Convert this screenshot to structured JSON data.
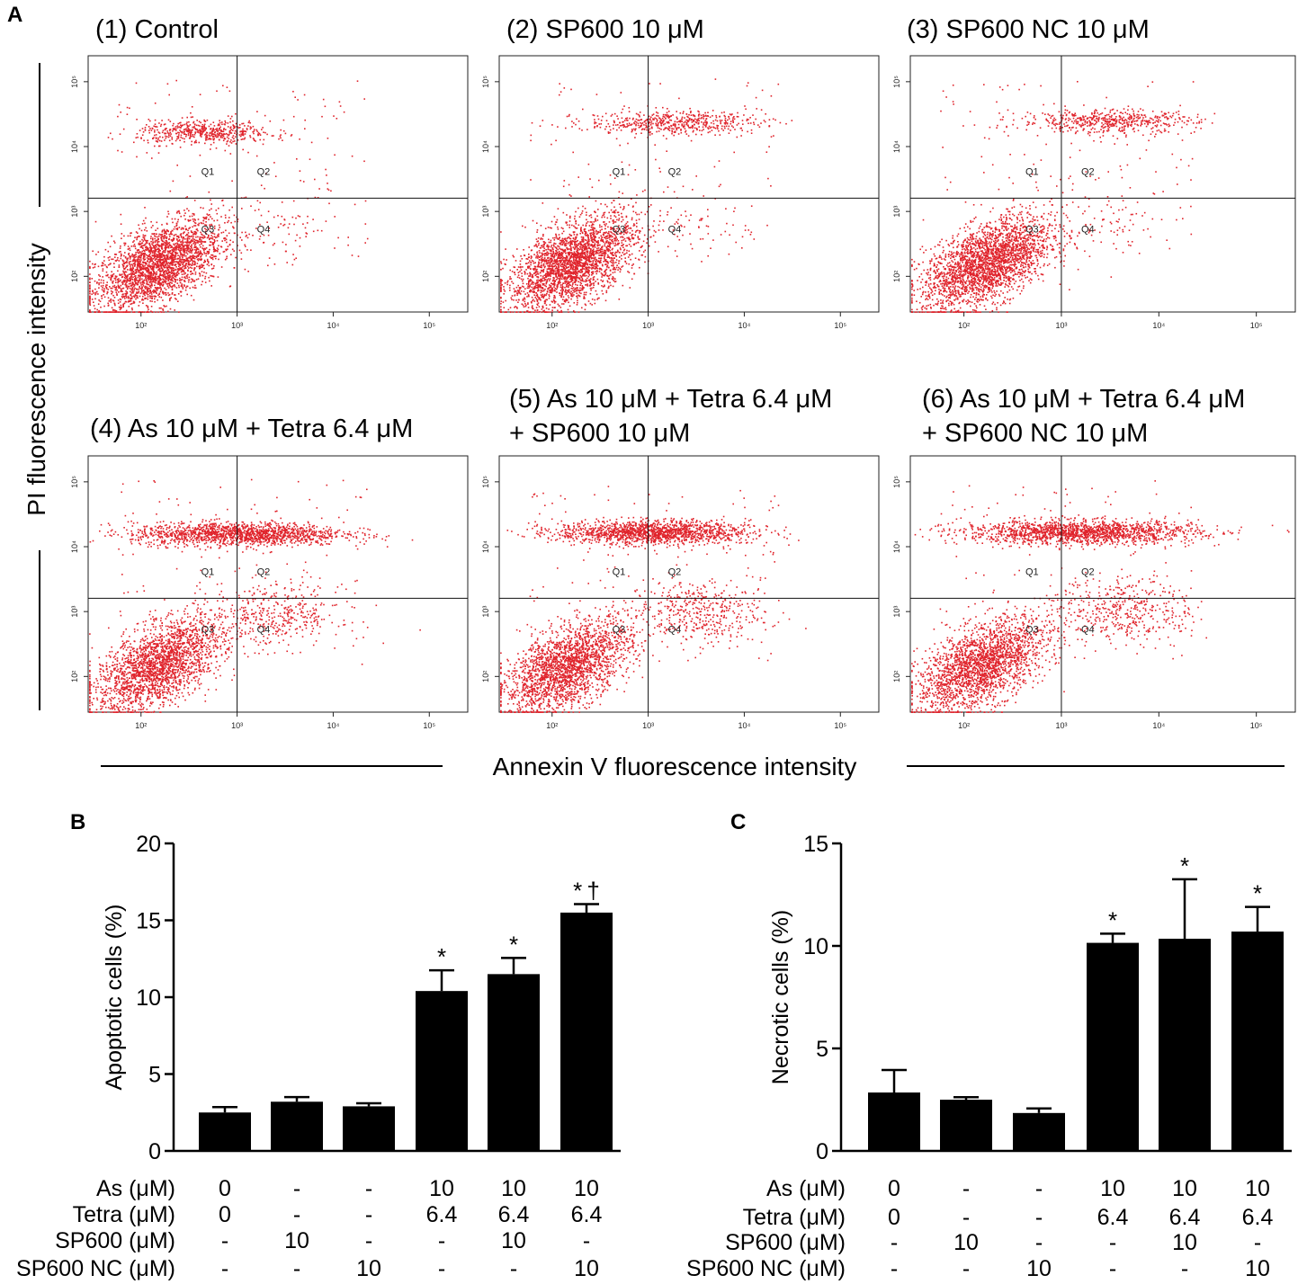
{
  "panel_labels": {
    "a": "A",
    "b": "B",
    "c": "C"
  },
  "flow": {
    "y_axis_label": "PI fluorescence intensity",
    "x_axis_label": "Annexin V fluorescence intensity",
    "x_ticks": [
      "10²",
      "10³",
      "10⁴",
      "10⁵"
    ],
    "y_ticks": [
      "10²",
      "10³",
      "10⁴",
      "10⁵"
    ],
    "quadrants": [
      "Q1",
      "Q2",
      "Q3",
      "Q4"
    ],
    "dot_color": "#e0242c",
    "plots": [
      {
        "title": [
          "(1) Control"
        ],
        "gate_x": 1000,
        "gate_y": 1600,
        "populations": {
          "live_x": 150,
          "live_y": 150,
          "live_n": 2600,
          "top_x": 450,
          "top_spread": 0.35,
          "top_y": 17000,
          "top_n": 520,
          "mid_n": 60,
          "mid_x": 2500,
          "mid_y": 600
        }
      },
      {
        "title": [
          "(2) SP600 10 μM"
        ],
        "gate_x": 1000,
        "gate_y": 1600,
        "populations": {
          "live_x": 160,
          "live_y": 160,
          "live_n": 2600,
          "top_x": 1800,
          "top_spread": 0.45,
          "top_y": 24000,
          "top_n": 520,
          "mid_n": 60,
          "mid_x": 2500,
          "mid_y": 600
        }
      },
      {
        "title": [
          "(3) SP600 NC 10 μM"
        ],
        "gate_x": 1000,
        "gate_y": 1600,
        "populations": {
          "live_x": 170,
          "live_y": 160,
          "live_n": 2600,
          "top_x": 3000,
          "top_spread": 0.45,
          "top_y": 25000,
          "top_n": 520,
          "mid_n": 70,
          "mid_x": 3000,
          "mid_y": 700
        }
      },
      {
        "title": [
          "(4) As 10 μM + Tetra 6.4 μM"
        ],
        "gate_x": 1000,
        "gate_y": 1600,
        "populations": {
          "live_x": 150,
          "live_y": 150,
          "live_n": 2200,
          "top_x": 1000,
          "top_spread": 0.55,
          "top_y": 16000,
          "top_n": 1500,
          "mid_n": 380,
          "mid_x": 2500,
          "mid_y": 900
        }
      },
      {
        "title": [
          "(5) As 10 μM + Tetra 6.4 μM",
          "+ SP600 10 μM"
        ],
        "gate_x": 1000,
        "gate_y": 1600,
        "populations": {
          "live_x": 140,
          "live_y": 140,
          "live_n": 2200,
          "top_x": 1100,
          "top_spread": 0.5,
          "top_y": 17000,
          "top_n": 1500,
          "mid_n": 420,
          "mid_x": 3000,
          "mid_y": 1000
        }
      },
      {
        "title": [
          "(6) As 10 μM + Tetra 6.4 μM",
          "+ SP600 NC 10 μM"
        ],
        "gate_x": 1000,
        "gate_y": 1600,
        "populations": {
          "live_x": 150,
          "live_y": 150,
          "live_n": 2200,
          "top_x": 1500,
          "top_spread": 0.6,
          "top_y": 17000,
          "top_n": 1600,
          "mid_n": 420,
          "mid_x": 4500,
          "mid_y": 1100
        }
      }
    ]
  },
  "chart_data": [
    {
      "type": "bar",
      "panel": "B",
      "ylabel": "Apoptotic cells (%)",
      "ylim": [
        0,
        20
      ],
      "yticks": [
        0,
        5,
        10,
        15,
        20
      ],
      "values": [
        2.5,
        3.2,
        2.9,
        10.4,
        11.5,
        15.5
      ],
      "errors": [
        0.35,
        0.3,
        0.2,
        1.35,
        1.05,
        0.55
      ],
      "annotations": [
        "",
        "",
        "",
        "*",
        "*",
        "* †"
      ],
      "rows": [
        {
          "label": "As (μM)",
          "values": [
            "0",
            "-",
            "-",
            "10",
            "10",
            "10"
          ]
        },
        {
          "label": "Tetra (μM)",
          "values": [
            "0",
            "-",
            "-",
            "6.4",
            "6.4",
            "6.4"
          ]
        },
        {
          "label": "SP600 (μM)",
          "values": [
            "-",
            "10",
            "-",
            "-",
            "10",
            "-"
          ]
        },
        {
          "label": "SP600 NC (μM)",
          "values": [
            "-",
            "-",
            "10",
            "-",
            "-",
            "10"
          ]
        }
      ]
    },
    {
      "type": "bar",
      "panel": "C",
      "ylabel": "Necrotic cells (%)",
      "ylim": [
        0,
        15
      ],
      "yticks": [
        0,
        5,
        10,
        15
      ],
      "values": [
        2.85,
        2.5,
        1.85,
        10.15,
        10.35,
        10.7
      ],
      "errors": [
        1.1,
        0.12,
        0.22,
        0.45,
        2.9,
        1.2
      ],
      "annotations": [
        "",
        "",
        "",
        "*",
        "*",
        "*"
      ],
      "rows": [
        {
          "label": "As (μM)",
          "values": [
            "0",
            "-",
            "-",
            "10",
            "10",
            "10"
          ]
        },
        {
          "label": "Tetra (μM)",
          "values": [
            "0",
            "-",
            "-",
            "6.4",
            "6.4",
            "6.4"
          ]
        },
        {
          "label": "SP600 (μM)",
          "values": [
            "-",
            "10",
            "-",
            "-",
            "10",
            "-"
          ]
        },
        {
          "label": "SP600 NC (μM)",
          "values": [
            "-",
            "-",
            "10",
            "-",
            "-",
            "10"
          ]
        }
      ]
    }
  ]
}
